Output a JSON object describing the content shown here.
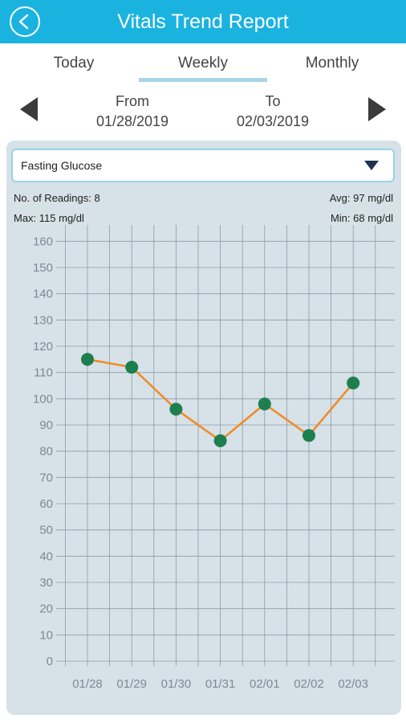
{
  "header": {
    "title": "Vitals Trend Report",
    "back_icon": "chevron-left-icon",
    "color": "#1ab3e0"
  },
  "tabs": [
    {
      "label": "Today",
      "active": false
    },
    {
      "label": "Weekly",
      "active": true
    },
    {
      "label": "Monthly",
      "active": false
    }
  ],
  "range": {
    "from_label": "From",
    "from_date": "01/28/2019",
    "to_label": "To",
    "to_date": "02/03/2019"
  },
  "selector": {
    "value": "Fasting Glucose"
  },
  "stats": {
    "readings": "No. of Readings: 8",
    "avg": "Avg: 97 mg/dl",
    "max": "Max: 115 mg/dl",
    "min": "Min: 68 mg/dl"
  },
  "chart_data": {
    "type": "line",
    "categories": [
      "01/28",
      "01/29",
      "01/30",
      "01/31",
      "02/01",
      "02/02",
      "02/03"
    ],
    "values": [
      115,
      112,
      96,
      84,
      98,
      86,
      106
    ],
    "yticks": [
      0,
      10,
      20,
      30,
      40,
      50,
      60,
      70,
      80,
      90,
      100,
      110,
      120,
      130,
      140,
      150,
      160
    ],
    "ylim": [
      0,
      165
    ],
    "grid": true,
    "line_color": "#f08a24",
    "marker_color": "#1e7f4e"
  }
}
